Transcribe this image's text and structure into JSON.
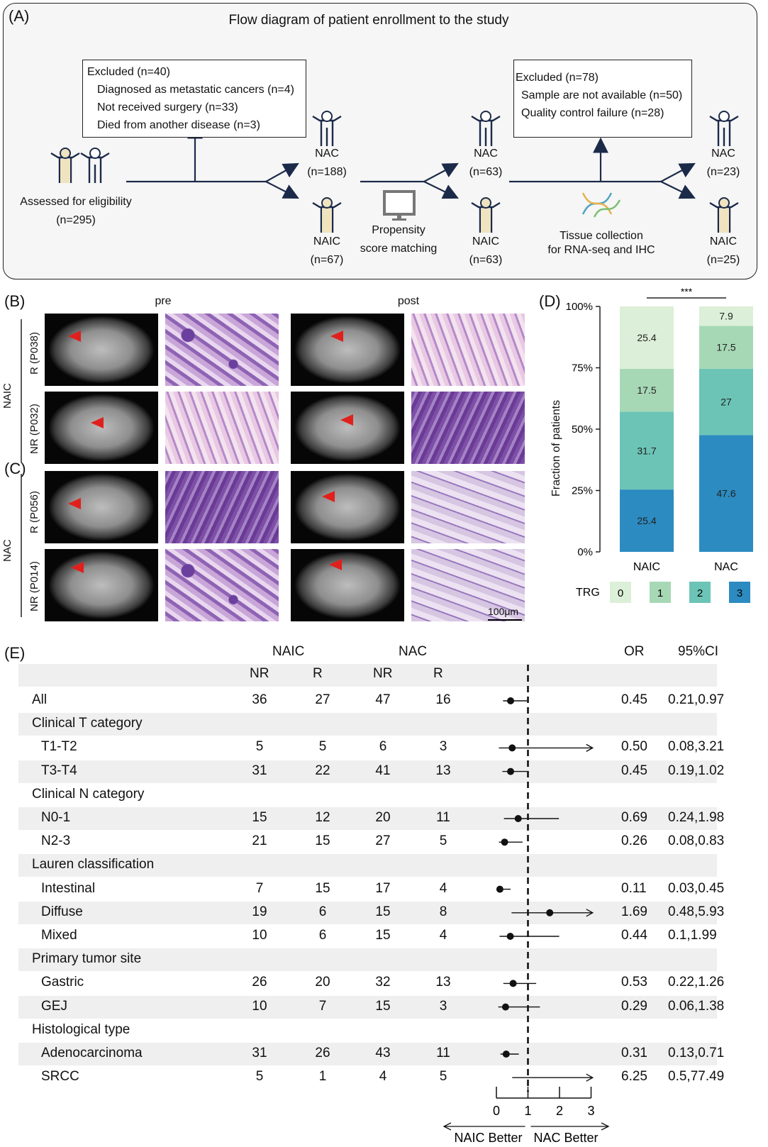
{
  "panel_a": {
    "letter": "(A)",
    "title": "Flow diagram of patient enrollment to the study",
    "assessed": {
      "label": "Assessed for eligibility",
      "n": "(n=295)"
    },
    "excluded1": {
      "head": "Excluded (n=40)",
      "items": [
        "Diagnosed as metastatic cancers (n=4)",
        "Not received surgery (n=33)",
        "Died from another disease (n=3)"
      ]
    },
    "g1": {
      "nac": "NAC",
      "nac_n": "(n=188)",
      "naic": "NAIC",
      "naic_n": "(n=67)"
    },
    "psm": {
      "l1": "Propensity",
      "l2": "score matching"
    },
    "g2": {
      "nac": "NAC",
      "nac_n": "(n=63)",
      "naic": "NAIC",
      "naic_n": "(n=63)"
    },
    "excluded2": {
      "head": "Excluded (n=78)",
      "items": [
        "Sample are not available (n=50)",
        "Quality control failure (n=28)"
      ]
    },
    "tissue": {
      "l1": "Tissue collection",
      "l2": "for RNA-seq and IHC"
    },
    "g3": {
      "nac": "NAC",
      "nac_n": "(n=23)",
      "naic": "NAIC",
      "naic_n": "(n=25)"
    }
  },
  "panel_bc": {
    "b_letter": "(B)",
    "c_letter": "(C)",
    "pre": "pre",
    "post": "post",
    "naic": "NAIC",
    "nac": "NAC",
    "rows": [
      "R (P038)",
      "NR (P032)",
      "R (P056)",
      "NR (P014)"
    ],
    "scale": "100μm"
  },
  "panel_d": {
    "letter": "(D)",
    "sig": "***",
    "ylabel": "Fraction of patients",
    "legend_title": "TRG",
    "colors": {
      "trg0": "#dcefd8",
      "trg1": "#a7d8b5",
      "trg2": "#6cc4b6",
      "trg3": "#2c8bc0"
    }
  },
  "chart_data": {
    "type": "bar",
    "stacked": true,
    "categories": [
      "NAIC",
      "NAC"
    ],
    "series": [
      {
        "name": "3",
        "values": [
          25.4,
          47.6
        ]
      },
      {
        "name": "2",
        "values": [
          31.7,
          27
        ]
      },
      {
        "name": "1",
        "values": [
          17.5,
          17.5
        ]
      },
      {
        "name": "0",
        "values": [
          25.4,
          7.9
        ]
      }
    ],
    "ylabel": "Fraction of patients",
    "ylim": [
      0,
      100
    ],
    "yticks": [
      "0%",
      "25%",
      "50%",
      "75%",
      "100%"
    ],
    "legend_title": "TRG",
    "legend_placement": "bottom",
    "annotation": "***"
  },
  "panel_e": {
    "letter": "(E)",
    "group_headers": {
      "naic": "NAIC",
      "nac": "NAC",
      "or": "OR",
      "ci": "95%CI"
    },
    "sub_headers": [
      "NR",
      "R",
      "NR",
      "R"
    ],
    "rows": [
      {
        "label": "All",
        "indent": false,
        "vals": [
          "36",
          "27",
          "47",
          "16"
        ],
        "or": "0.45",
        "ci": "0.21,0.97",
        "or_v": 0.45,
        "lo": 0.21,
        "hi": 0.97
      },
      {
        "label": "Clinical T category",
        "indent": false,
        "header": true
      },
      {
        "label": "T1-T2",
        "indent": true,
        "vals": [
          "5",
          "5",
          "6",
          "3"
        ],
        "or": "0.50",
        "ci": "0.08,3.21",
        "or_v": 0.5,
        "lo": 0.08,
        "hi": 3.21
      },
      {
        "label": "T3-T4",
        "indent": true,
        "vals": [
          "31",
          "22",
          "41",
          "13"
        ],
        "or": "0.45",
        "ci": "0.19,1.02",
        "or_v": 0.45,
        "lo": 0.19,
        "hi": 1.02
      },
      {
        "label": "Clinical N category",
        "indent": false,
        "header": true
      },
      {
        "label": "N0-1",
        "indent": true,
        "vals": [
          "15",
          "12",
          "20",
          "11"
        ],
        "or": "0.69",
        "ci": "0.24,1.98",
        "or_v": 0.69,
        "lo": 0.24,
        "hi": 1.98
      },
      {
        "label": "N2-3",
        "indent": true,
        "vals": [
          "21",
          "15",
          "27",
          "5"
        ],
        "or": "0.26",
        "ci": "0.08,0.83",
        "or_v": 0.26,
        "lo": 0.08,
        "hi": 0.83
      },
      {
        "label": "Lauren classification",
        "indent": false,
        "header": true
      },
      {
        "label": "Intestinal",
        "indent": true,
        "vals": [
          "7",
          "15",
          "17",
          "4"
        ],
        "or": "0.11",
        "ci": "0.03,0.45",
        "or_v": 0.11,
        "lo": 0.03,
        "hi": 0.45
      },
      {
        "label": "Diffuse",
        "indent": true,
        "vals": [
          "19",
          "6",
          "15",
          "8"
        ],
        "or": "1.69",
        "ci": "0.48,5.93",
        "or_v": 1.69,
        "lo": 0.48,
        "hi": 5.93
      },
      {
        "label": "Mixed",
        "indent": true,
        "vals": [
          "10",
          "6",
          "15",
          "4"
        ],
        "or": "0.44",
        "ci": "0.1,1.99",
        "or_v": 0.44,
        "lo": 0.1,
        "hi": 1.99
      },
      {
        "label": "Primary tumor site",
        "indent": false,
        "header": true
      },
      {
        "label": "Gastric",
        "indent": true,
        "vals": [
          "26",
          "20",
          "32",
          "13"
        ],
        "or": "0.53",
        "ci": "0.22,1.26",
        "or_v": 0.53,
        "lo": 0.22,
        "hi": 1.26
      },
      {
        "label": "GEJ",
        "indent": true,
        "vals": [
          "10",
          "7",
          "15",
          "3"
        ],
        "or": "0.29",
        "ci": "0.06,1.38",
        "or_v": 0.29,
        "lo": 0.06,
        "hi": 1.38
      },
      {
        "label": "Histological type",
        "indent": false,
        "header": true
      },
      {
        "label": "Adenocarcinoma",
        "indent": true,
        "vals": [
          "31",
          "26",
          "43",
          "11"
        ],
        "or": "0.31",
        "ci": "0.13,0.71",
        "or_v": 0.31,
        "lo": 0.13,
        "hi": 0.71
      },
      {
        "label": "SRCC",
        "indent": true,
        "vals": [
          "5",
          "1",
          "4",
          "5"
        ],
        "or": "6.25",
        "ci": "0.5,77.49",
        "or_v": 6.25,
        "lo": 0.5,
        "hi": 77.49
      }
    ],
    "axis_ticks": [
      "0",
      "1",
      "2",
      "3"
    ],
    "naic_better": "NAIC Better",
    "nac_better": "NAC Better"
  }
}
